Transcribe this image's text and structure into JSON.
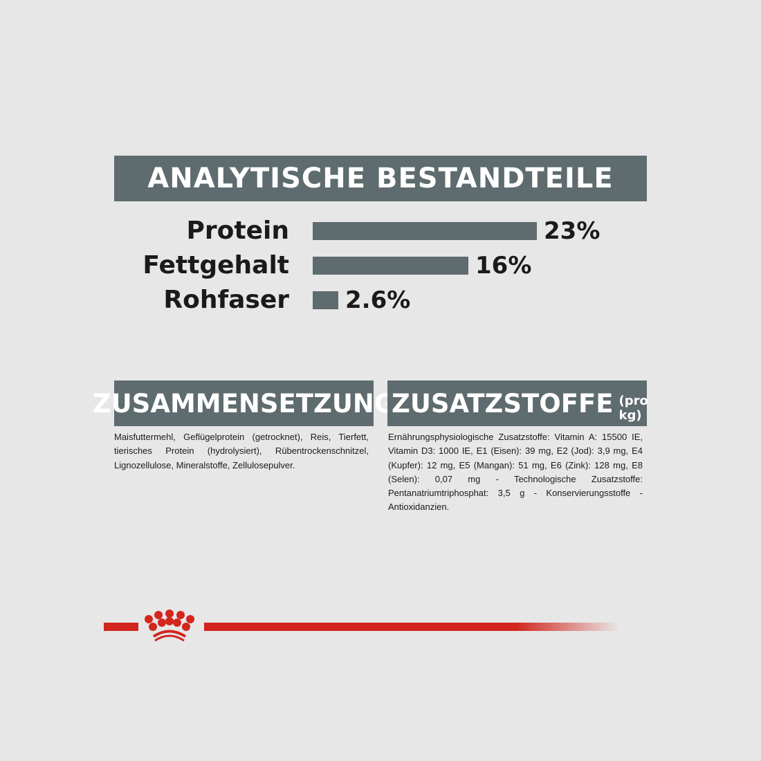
{
  "title": "ANALYTISCHE BESTANDTEILE",
  "chart_data": {
    "type": "bar",
    "orientation": "horizontal",
    "title": "ANALYTISCHE BESTANDTEILE",
    "categories": [
      "Protein",
      "Fettgehalt",
      "Rohfaser"
    ],
    "values": [
      23,
      16,
      2.6
    ],
    "value_labels": [
      "23%",
      "16%",
      "2.6%"
    ],
    "unit": "%",
    "grid": false,
    "bar_color": "#5e6b6f"
  },
  "composition": {
    "title": "ZUSAMMENSETZUNG",
    "text": "Maisfuttermehl, Geflügelprotein (getrocknet), Reis, Tierfett, tierisches Protein (hydrolysiert), Rübentrockenschnitzel, Lignozellulose, Mineralstoffe, Zellulosepulver."
  },
  "additives": {
    "title": "ZUSATZSTOFFE",
    "subtitle": "(pro kg)",
    "text": "Ernährungsphysiologische Zusatzstoffe: Vitamin A: 15500 IE, Vitamin D3: 1000 IE, E1 (Eisen): 39 mg, E2 (Jod): 3,9 mg, E4 (Kupfer): 12 mg, E5 (Mangan): 51 mg, E6 (Zink): 128 mg, E8 (Selen): 0,07 mg - Technologische Zusatzstoffe: Pentanatriumtriphosphat: 3,5 g - Konservierungsstoffe - Antioxidanzien."
  },
  "brand": {
    "logo": "crown-logo",
    "color": "#d2261e"
  }
}
